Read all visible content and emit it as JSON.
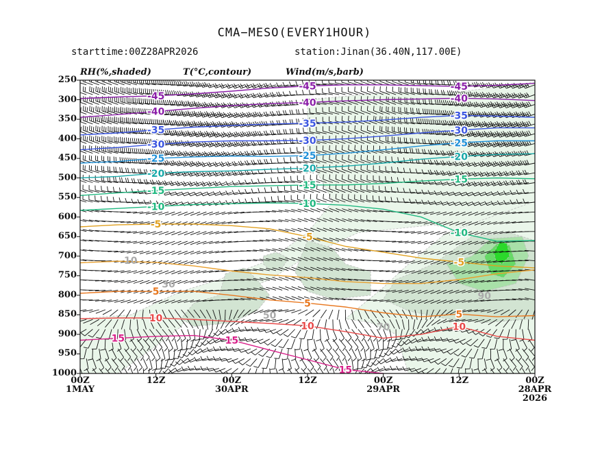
{
  "chart_data": {
    "type": "heatmap",
    "title": "CMA−MESO(EVERY1HOUR)",
    "starttime": "starttime:00Z28APR2026",
    "station": "station:Jinan(36.40N,117.00E)",
    "headers": [
      "RH(%,shaded)",
      "T(°C,contour)",
      "Wind(m/s,barb)"
    ],
    "y_axis": {
      "label": "",
      "ticks": [
        "250",
        "300",
        "350",
        "400",
        "450",
        "500",
        "550",
        "600",
        "650",
        "700",
        "750",
        "800",
        "850",
        "900",
        "950",
        "1000"
      ],
      "ylim": [
        1000,
        250
      ]
    },
    "x_axis": {
      "label": "",
      "ticks": [
        {
          "line1": "00Z",
          "line2": "1MAY",
          "line3": ""
        },
        {
          "line1": "12Z",
          "line2": "",
          "line3": ""
        },
        {
          "line1": "00Z",
          "line2": "30APR",
          "line3": ""
        },
        {
          "line1": "12Z",
          "line2": "",
          "line3": ""
        },
        {
          "line1": "00Z",
          "line2": "29APR",
          "line3": ""
        },
        {
          "line1": "12Z",
          "line2": "",
          "line3": ""
        },
        {
          "line1": "00Z",
          "line2": "28APR",
          "line3": "2026"
        }
      ]
    },
    "rh_shading_levels": [
      30,
      50,
      70,
      90
    ],
    "rh_colors": {
      "30": "#eaf6ea",
      "50": "#d2e4d2",
      "70": "#a8e0a8",
      "90": "#66d966",
      "max": "#2bd82b"
    },
    "rh_labels": [
      "30",
      "50",
      "70",
      "90",
      "10"
    ],
    "temperature_contours": [
      {
        "value": -45,
        "label": "-45",
        "color": "#8b1fa8",
        "points": [
          [
            0,
            297
          ],
          [
            6,
            293
          ],
          [
            12,
            290
          ],
          [
            18,
            285
          ],
          [
            24,
            278
          ],
          [
            30,
            270
          ],
          [
            36,
            265
          ],
          [
            42,
            262
          ],
          [
            48,
            262
          ],
          [
            54,
            264
          ],
          [
            60,
            266
          ],
          [
            66,
            263
          ],
          [
            72,
            258
          ]
        ]
      },
      {
        "value": -40,
        "label": "-40",
        "color": "#8b1fa8",
        "points": [
          [
            0,
            345
          ],
          [
            6,
            338
          ],
          [
            12,
            330
          ],
          [
            18,
            322
          ],
          [
            24,
            315
          ],
          [
            30,
            310
          ],
          [
            36,
            307
          ],
          [
            42,
            303
          ],
          [
            48,
            300
          ],
          [
            54,
            298
          ],
          [
            60,
            296
          ],
          [
            66,
            298
          ],
          [
            72,
            302
          ]
        ]
      },
      {
        "value": -35,
        "label": "-35",
        "color": "#3b56e0",
        "points": [
          [
            0,
            390
          ],
          [
            6,
            385
          ],
          [
            12,
            377
          ],
          [
            18,
            370
          ],
          [
            24,
            366
          ],
          [
            30,
            362
          ],
          [
            36,
            360
          ],
          [
            42,
            357
          ],
          [
            48,
            352
          ],
          [
            54,
            345
          ],
          [
            60,
            340
          ],
          [
            66,
            342
          ],
          [
            72,
            345
          ]
        ]
      },
      {
        "value": -30,
        "label": "-30",
        "color": "#3b56e0",
        "points": [
          [
            0,
            428
          ],
          [
            6,
            422
          ],
          [
            12,
            414
          ],
          [
            18,
            408
          ],
          [
            24,
            405
          ],
          [
            30,
            405
          ],
          [
            36,
            404
          ],
          [
            42,
            400
          ],
          [
            48,
            393
          ],
          [
            54,
            385
          ],
          [
            60,
            378
          ],
          [
            66,
            372
          ],
          [
            72,
            372
          ]
        ]
      },
      {
        "value": -25,
        "label": "-25",
        "color": "#1e90d8",
        "points": [
          [
            0,
            462
          ],
          [
            6,
            458
          ],
          [
            12,
            450
          ],
          [
            18,
            446
          ],
          [
            24,
            444
          ],
          [
            30,
            445
          ],
          [
            36,
            443
          ],
          [
            42,
            437
          ],
          [
            48,
            428
          ],
          [
            54,
            418
          ],
          [
            60,
            410
          ],
          [
            66,
            405
          ],
          [
            72,
            405
          ]
        ]
      },
      {
        "value": -20,
        "label": "-20",
        "color": "#18a8a8",
        "points": [
          [
            0,
            500
          ],
          [
            6,
            496
          ],
          [
            12,
            488
          ],
          [
            18,
            484
          ],
          [
            24,
            482
          ],
          [
            30,
            478
          ],
          [
            36,
            475
          ],
          [
            42,
            470
          ],
          [
            48,
            462
          ],
          [
            54,
            452
          ],
          [
            60,
            445
          ],
          [
            66,
            440
          ],
          [
            72,
            438
          ]
        ]
      },
      {
        "value": -15,
        "label": "-15",
        "color": "#20b880",
        "points": [
          [
            0,
            545
          ],
          [
            6,
            538
          ],
          [
            12,
            532
          ],
          [
            18,
            527
          ],
          [
            24,
            522
          ],
          [
            30,
            520
          ],
          [
            36,
            518
          ],
          [
            42,
            518
          ],
          [
            48,
            514
          ],
          [
            54,
            508
          ],
          [
            60,
            503
          ],
          [
            66,
            500
          ],
          [
            72,
            502
          ]
        ]
      },
      {
        "value": -10,
        "label": "-10",
        "color": "#20b880",
        "points": [
          [
            0,
            583
          ],
          [
            6,
            578
          ],
          [
            12,
            573
          ],
          [
            18,
            568
          ],
          [
            24,
            566
          ],
          [
            30,
            564
          ],
          [
            36,
            565
          ],
          [
            42,
            570
          ],
          [
            48,
            580
          ],
          [
            54,
            600
          ],
          [
            60,
            640
          ],
          [
            66,
            662
          ],
          [
            72,
            660
          ]
        ]
      },
      {
        "value": -5,
        "label": "-5",
        "color": "#e0a020",
        "points": [
          [
            0,
            625
          ],
          [
            6,
            620
          ],
          [
            12,
            618
          ],
          [
            18,
            618
          ],
          [
            24,
            622
          ],
          [
            30,
            630
          ],
          [
            36,
            650
          ],
          [
            42,
            675
          ],
          [
            48,
            690
          ],
          [
            54,
            705
          ],
          [
            60,
            715
          ],
          [
            66,
            725
          ],
          [
            72,
            730
          ]
        ]
      },
      {
        "value": 0,
        "label": "",
        "color": "#e8a030",
        "points": [
          [
            0,
            717
          ],
          [
            6,
            713
          ],
          [
            12,
            716
          ],
          [
            18,
            725
          ],
          [
            24,
            738
          ],
          [
            30,
            748
          ],
          [
            36,
            755
          ],
          [
            42,
            765
          ],
          [
            48,
            770
          ],
          [
            54,
            770
          ],
          [
            60,
            760
          ],
          [
            66,
            745
          ],
          [
            72,
            735
          ]
        ]
      },
      {
        "value": 5,
        "label": "5",
        "color": "#e87820",
        "points": [
          [
            0,
            795
          ],
          [
            6,
            790
          ],
          [
            12,
            790
          ],
          [
            18,
            790
          ],
          [
            24,
            800
          ],
          [
            30,
            812
          ],
          [
            36,
            820
          ],
          [
            42,
            830
          ],
          [
            48,
            845
          ],
          [
            54,
            855
          ],
          [
            60,
            848
          ],
          [
            66,
            855
          ],
          [
            72,
            852
          ]
        ]
      },
      {
        "value": 10,
        "label": "10",
        "color": "#e84848",
        "points": [
          [
            0,
            860
          ],
          [
            6,
            858
          ],
          [
            12,
            858
          ],
          [
            18,
            862
          ],
          [
            24,
            867
          ],
          [
            30,
            872
          ],
          [
            36,
            878
          ],
          [
            42,
            893
          ],
          [
            48,
            910
          ],
          [
            54,
            900
          ],
          [
            60,
            880
          ],
          [
            66,
            905
          ],
          [
            72,
            915
          ]
        ]
      },
      {
        "value": 15,
        "label": "15",
        "color": "#d8208a",
        "points": [
          [
            0,
            915
          ],
          [
            6,
            910
          ],
          [
            12,
            905
          ],
          [
            18,
            903
          ],
          [
            24,
            915
          ],
          [
            30,
            940
          ],
          [
            36,
            965
          ],
          [
            42,
            990
          ],
          [
            48,
            1000
          ]
        ]
      }
    ],
    "wind_barbs": "barbs drawn at every hour and every 25 hPa level"
  }
}
